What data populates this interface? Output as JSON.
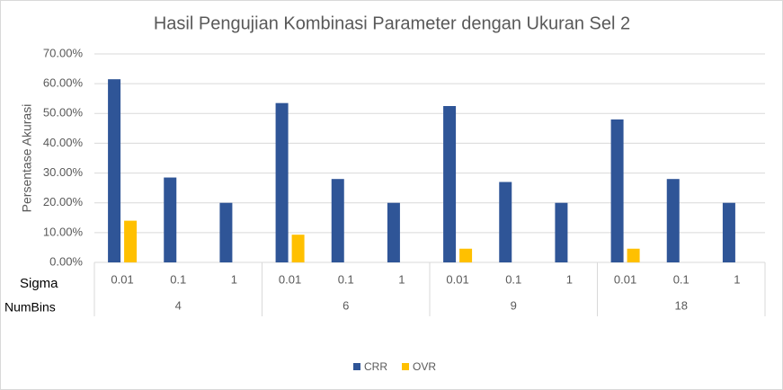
{
  "chart_data": {
    "type": "bar",
    "title": "Hasil Pengujian Kombinasi Parameter dengan Ukuran Sel 2",
    "y_label": "Persentase Akurasi",
    "x_level_names": [
      "Sigma",
      "NumBins"
    ],
    "categories": [
      "0.01",
      "0.1",
      "1",
      "0.01",
      "0.1",
      "1",
      "0.01",
      "0.1",
      "1",
      "0.01",
      "0.1",
      "1"
    ],
    "groups": [
      "4",
      "6",
      "9",
      "18"
    ],
    "series": [
      {
        "name": "CRR",
        "color": "#2f5597",
        "values": [
          61.5,
          28.5,
          20,
          53.5,
          28,
          20,
          52.5,
          27,
          20,
          48,
          28,
          20
        ]
      },
      {
        "name": "OVR",
        "color": "#ffc000",
        "values": [
          14,
          0,
          0,
          9.3,
          0,
          0,
          4.6,
          0,
          0,
          4.6,
          0,
          0
        ]
      }
    ],
    "ylim": [
      0,
      70
    ],
    "yticks": [
      {
        "value": 0,
        "label": "0.00%"
      },
      {
        "value": 10,
        "label": "10.00%"
      },
      {
        "value": 20,
        "label": "20.00%"
      },
      {
        "value": 30,
        "label": "30.00%"
      },
      {
        "value": 40,
        "label": "40.00%"
      },
      {
        "value": 50,
        "label": "50.00%"
      },
      {
        "value": 60,
        "label": "60.00%"
      },
      {
        "value": 70,
        "label": "70.00%"
      }
    ],
    "grid": true,
    "legend": "bottom"
  }
}
